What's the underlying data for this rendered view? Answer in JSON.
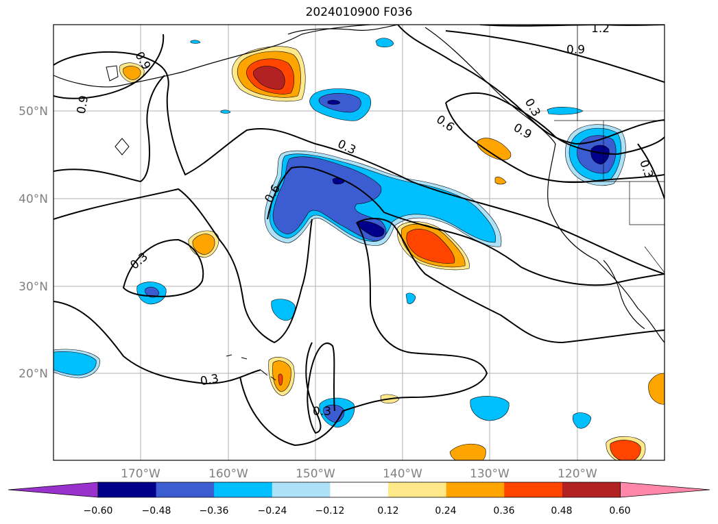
{
  "title": "2024010900 F036",
  "map": {
    "lat_labels": [
      "50°N",
      "40°N",
      "30°N",
      "20°N"
    ],
    "lon_labels": [
      "170°W",
      "160°W",
      "150°W",
      "140°W",
      "130°W",
      "120°W"
    ],
    "contour_labels": [
      "0.9",
      "0.9",
      "1.2",
      "0.9",
      "0.3",
      "0.6",
      "0.9",
      "0.3",
      "0.6",
      "0.3",
      "0.3",
      "0.3",
      "0.3"
    ]
  },
  "colorbar": {
    "ticks": [
      "−0.60",
      "−0.48",
      "−0.36",
      "−0.24",
      "−0.12",
      "0.12",
      "0.24",
      "0.36",
      "0.48",
      "0.60"
    ],
    "colors": [
      "#9932cc",
      "#00008b",
      "#3c5dd1",
      "#00bfff",
      "#ade1f7",
      "#ffffff",
      "#ffe88a",
      "#ffa500",
      "#ff4500",
      "#b22222",
      "#ff87aa"
    ]
  }
}
